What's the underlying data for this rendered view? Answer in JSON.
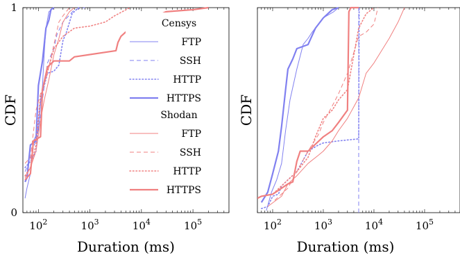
{
  "colors": {
    "censys": "#8080f0",
    "shodan": "#f08080"
  },
  "legend": {
    "groups": [
      {
        "title": "Censys",
        "color_key": "censys",
        "entries": [
          {
            "label": "FTP",
            "style": "solid"
          },
          {
            "label": "SSH",
            "style": "dashed"
          },
          {
            "label": "HTTP",
            "style": "dotted"
          },
          {
            "label": "HTTPS",
            "style": "thick"
          }
        ]
      },
      {
        "title": "Shodan",
        "color_key": "shodan",
        "entries": [
          {
            "label": "FTP",
            "style": "solid"
          },
          {
            "label": "SSH",
            "style": "dashed"
          },
          {
            "label": "HTTP",
            "style": "dotted"
          },
          {
            "label": "HTTPS",
            "style": "thick"
          }
        ]
      }
    ]
  },
  "chart_data": [
    {
      "type": "line",
      "xscale": "log",
      "xlim": [
        50,
        500000
      ],
      "ylim": [
        0,
        1
      ],
      "xlabel": "Duration (ms)",
      "ylabel": "CDF",
      "yticks": [
        "0",
        "1"
      ],
      "xticks": [
        {
          "base": "10",
          "exp": "2"
        },
        {
          "base": "10",
          "exp": "3"
        },
        {
          "base": "10",
          "exp": "4"
        },
        {
          "base": "10",
          "exp": "5"
        }
      ],
      "series": [
        {
          "source": "censys",
          "protocol": "FTP",
          "style": "solid",
          "points": [
            [
              55,
              0.07
            ],
            [
              60,
              0.12
            ],
            [
              70,
              0.19
            ],
            [
              80,
              0.35
            ],
            [
              100,
              0.4
            ],
            [
              110,
              0.53
            ],
            [
              120,
              0.62
            ],
            [
              130,
              0.78
            ],
            [
              140,
              0.9
            ],
            [
              160,
              0.98
            ],
            [
              200,
              1
            ]
          ]
        },
        {
          "source": "censys",
          "protocol": "SSH",
          "style": "dashed",
          "points": [
            [
              55,
              0.2
            ],
            [
              70,
              0.26
            ],
            [
              90,
              0.36
            ],
            [
              110,
              0.47
            ],
            [
              130,
              0.62
            ],
            [
              150,
              0.73
            ],
            [
              200,
              0.8
            ],
            [
              230,
              0.87
            ],
            [
              300,
              0.93
            ],
            [
              500,
              0.99
            ],
            [
              800,
              1
            ]
          ]
        },
        {
          "source": "censys",
          "protocol": "HTTP",
          "style": "dotted",
          "points": [
            [
              55,
              0.22
            ],
            [
              70,
              0.25
            ],
            [
              90,
              0.3
            ],
            [
              110,
              0.55
            ],
            [
              150,
              0.68
            ],
            [
              200,
              0.69
            ],
            [
              250,
              0.72
            ],
            [
              300,
              0.84
            ],
            [
              350,
              0.88
            ],
            [
              450,
              0.97
            ],
            [
              600,
              1
            ]
          ]
        },
        {
          "source": "censys",
          "protocol": "HTTPS",
          "style": "thick",
          "points": [
            [
              55,
              0.15
            ],
            [
              60,
              0.17
            ],
            [
              70,
              0.33
            ],
            [
              90,
              0.35
            ],
            [
              100,
              0.62
            ],
            [
              120,
              0.74
            ],
            [
              140,
              0.9
            ],
            [
              160,
              0.94
            ],
            [
              175,
              0.99
            ],
            [
              200,
              1
            ]
          ]
        },
        {
          "source": "shodan",
          "protocol": "FTP",
          "style": "solid",
          "points": [
            [
              55,
              0.17
            ],
            [
              70,
              0.22
            ],
            [
              90,
              0.3
            ],
            [
              110,
              0.45
            ],
            [
              130,
              0.55
            ],
            [
              160,
              0.65
            ],
            [
              200,
              0.77
            ],
            [
              250,
              0.85
            ],
            [
              300,
              0.93
            ],
            [
              400,
              0.98
            ],
            [
              500,
              1
            ]
          ]
        },
        {
          "source": "shodan",
          "protocol": "SSH",
          "style": "dashed",
          "points": [
            [
              55,
              0.24
            ],
            [
              70,
              0.27
            ],
            [
              90,
              0.5
            ],
            [
              110,
              0.58
            ],
            [
              150,
              0.68
            ],
            [
              200,
              0.82
            ],
            [
              250,
              0.93
            ],
            [
              300,
              0.96
            ],
            [
              400,
              1
            ]
          ]
        },
        {
          "source": "shodan",
          "protocol": "HTTP",
          "style": "dotted",
          "points": [
            [
              55,
              0.18
            ],
            [
              70,
              0.22
            ],
            [
              90,
              0.33
            ],
            [
              110,
              0.57
            ],
            [
              130,
              0.63
            ],
            [
              200,
              0.8
            ],
            [
              300,
              0.86
            ],
            [
              500,
              0.9
            ],
            [
              1000,
              0.91
            ],
            [
              2000,
              0.93
            ],
            [
              3000,
              0.96
            ],
            [
              6000,
              1
            ]
          ]
        },
        {
          "source": "shodan",
          "protocol": "HTTPS",
          "style": "thick",
          "points": [
            [
              55,
              0.16
            ],
            [
              70,
              0.19
            ],
            [
              80,
              0.35
            ],
            [
              110,
              0.37
            ],
            [
              120,
              0.6
            ],
            [
              150,
              0.71
            ],
            [
              200,
              0.74
            ],
            [
              400,
              0.74
            ],
            [
              500,
              0.76
            ],
            [
              3200,
              0.79
            ],
            [
              3500,
              0.83
            ],
            [
              4000,
              0.86
            ],
            [
              6000,
              0.9
            ],
            [
              10000,
              0.94
            ],
            [
              20000,
              0.96
            ],
            [
              30000,
              0.98
            ],
            [
              100000,
              0.99
            ],
            [
              200000,
              1
            ]
          ]
        }
      ]
    },
    {
      "type": "line",
      "xscale": "log",
      "xlim": [
        50,
        500000
      ],
      "ylim": [
        0,
        1
      ],
      "xlabel": "Duration (ms)",
      "ylabel": "CDF",
      "yticks": [],
      "xticks": [
        {
          "base": "10",
          "exp": "2"
        },
        {
          "base": "10",
          "exp": "3"
        },
        {
          "base": "10",
          "exp": "4"
        },
        {
          "base": "10",
          "exp": "5"
        }
      ],
      "series": [
        {
          "source": "censys",
          "protocol": "FTP",
          "style": "solid",
          "points": [
            [
              75,
              0.01
            ],
            [
              95,
              0.1
            ],
            [
              120,
              0.16
            ],
            [
              150,
              0.24
            ],
            [
              180,
              0.4
            ],
            [
              220,
              0.55
            ],
            [
              300,
              0.7
            ],
            [
              400,
              0.82
            ],
            [
              500,
              0.85
            ],
            [
              600,
              0.88
            ],
            [
              800,
              0.92
            ],
            [
              1000,
              0.95
            ],
            [
              1600,
              0.98
            ],
            [
              2000,
              1
            ]
          ]
        },
        {
          "source": "censys",
          "protocol": "SSH",
          "style": "dashed",
          "points": [
            [
              5000,
              0
            ],
            [
              5000,
              1
            ]
          ]
        },
        {
          "source": "censys",
          "protocol": "HTTP",
          "style": "dotted",
          "points": [
            [
              60,
              0.02
            ],
            [
              80,
              0.03
            ],
            [
              100,
              0.08
            ],
            [
              130,
              0.09
            ],
            [
              150,
              0.13
            ],
            [
              200,
              0.16
            ],
            [
              300,
              0.2
            ],
            [
              500,
              0.3
            ],
            [
              800,
              0.33
            ],
            [
              1000,
              0.34
            ],
            [
              2000,
              0.35
            ],
            [
              5000,
              0.36
            ],
            [
              5100,
              1
            ]
          ]
        },
        {
          "source": "censys",
          "protocol": "HTTPS",
          "style": "thick",
          "points": [
            [
              60,
              0.05
            ],
            [
              80,
              0.1
            ],
            [
              100,
              0.19
            ],
            [
              130,
              0.3
            ],
            [
              150,
              0.42
            ],
            [
              180,
              0.6
            ],
            [
              200,
              0.7
            ],
            [
              250,
              0.75
            ],
            [
              300,
              0.8
            ],
            [
              500,
              0.82
            ],
            [
              700,
              0.9
            ],
            [
              1000,
              0.95
            ],
            [
              1500,
              0.99
            ],
            [
              2000,
              1
            ]
          ]
        },
        {
          "source": "shodan",
          "protocol": "FTP",
          "style": "solid",
          "points": [
            [
              80,
              0.03
            ],
            [
              150,
              0.08
            ],
            [
              200,
              0.14
            ],
            [
              300,
              0.18
            ],
            [
              500,
              0.24
            ],
            [
              800,
              0.28
            ],
            [
              1000,
              0.3
            ],
            [
              1500,
              0.35
            ],
            [
              2000,
              0.4
            ],
            [
              3000,
              0.46
            ],
            [
              5000,
              0.56
            ],
            [
              7000,
              0.68
            ],
            [
              10000,
              0.73
            ],
            [
              20000,
              0.85
            ],
            [
              30000,
              0.93
            ],
            [
              40000,
              1
            ]
          ]
        },
        {
          "source": "shodan",
          "protocol": "SSH",
          "style": "dashed",
          "points": [
            [
              110,
              0.06
            ],
            [
              200,
              0.12
            ],
            [
              300,
              0.2
            ],
            [
              500,
              0.3
            ],
            [
              800,
              0.38
            ],
            [
              1000,
              0.44
            ],
            [
              1500,
              0.52
            ],
            [
              2000,
              0.58
            ],
            [
              3000,
              0.68
            ],
            [
              5000,
              0.86
            ],
            [
              7000,
              0.88
            ],
            [
              10000,
              0.92
            ],
            [
              12000,
              1
            ]
          ]
        },
        {
          "source": "shodan",
          "protocol": "HTTP",
          "style": "dotted",
          "points": [
            [
              60,
              0.08
            ],
            [
              100,
              0.09
            ],
            [
              200,
              0.16
            ],
            [
              300,
              0.2
            ],
            [
              500,
              0.27
            ],
            [
              700,
              0.37
            ],
            [
              1000,
              0.46
            ],
            [
              1500,
              0.5
            ],
            [
              2000,
              0.55
            ],
            [
              3000,
              0.6
            ],
            [
              5000,
              0.9
            ],
            [
              7000,
              0.97
            ],
            [
              10000,
              1
            ]
          ]
        },
        {
          "source": "shodan",
          "protocol": "HTTPS",
          "style": "thick",
          "points": [
            [
              50,
              0.07
            ],
            [
              60,
              0.08
            ],
            [
              100,
              0.09
            ],
            [
              200,
              0.14
            ],
            [
              250,
              0.15
            ],
            [
              300,
              0.25
            ],
            [
              350,
              0.3
            ],
            [
              500,
              0.3
            ],
            [
              1000,
              0.37
            ],
            [
              1500,
              0.4
            ],
            [
              2000,
              0.44
            ],
            [
              3000,
              0.5
            ],
            [
              3200,
              0.98
            ],
            [
              3500,
              1
            ],
            [
              5000,
              1
            ]
          ]
        }
      ]
    }
  ]
}
